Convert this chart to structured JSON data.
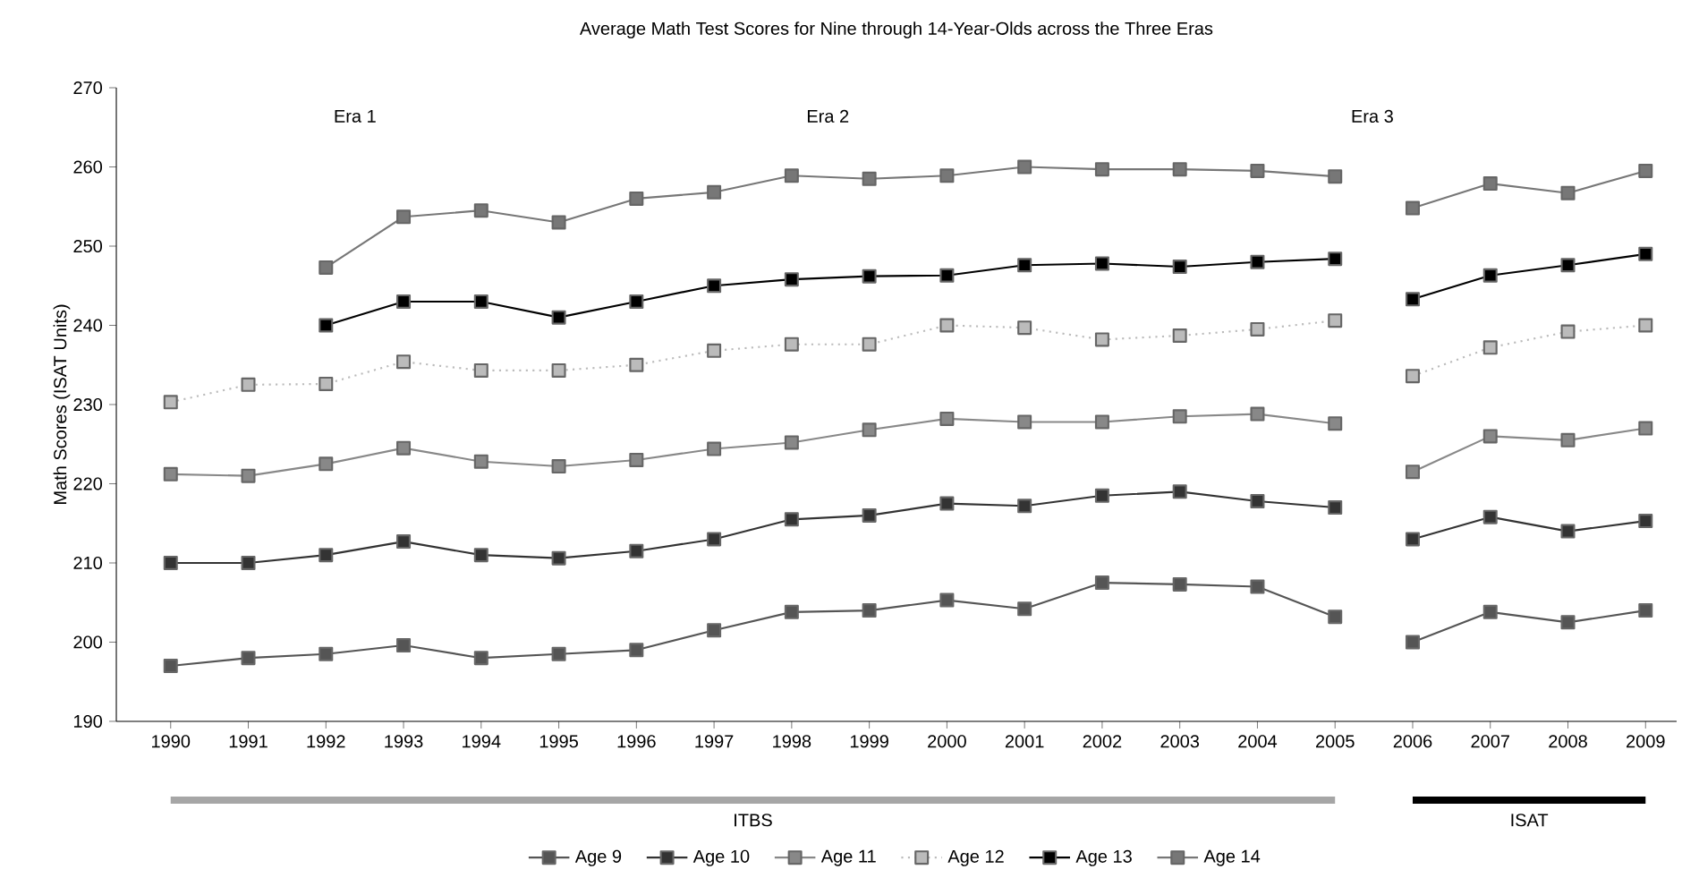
{
  "chart_data": {
    "type": "line",
    "title": "Average Math Test Scores for Nine through 14-Year-Olds across the Three Eras",
    "ylabel": "Math Scores (ISAT Units)",
    "xlim": [
      1989.3,
      2009.4
    ],
    "xticks": [
      1990,
      1991,
      1992,
      1993,
      1994,
      1995,
      1996,
      1997,
      1998,
      1999,
      2000,
      2001,
      2002,
      2003,
      2004,
      2005,
      2006,
      2007,
      2008,
      2009
    ],
    "ylim": [
      190,
      270
    ],
    "yticks": [
      190,
      200,
      210,
      220,
      230,
      240,
      250,
      260,
      270
    ],
    "marker": "square",
    "legend": "bottom",
    "series": [
      {
        "name": "Age 9",
        "color": "#555555",
        "x": [
          1990,
          1991,
          1992,
          1993,
          1994,
          1995,
          1996,
          1997,
          1998,
          1999,
          2000,
          2001,
          2002,
          2003,
          2004,
          2005
        ],
        "values": [
          197,
          198,
          198.5,
          199.6,
          198,
          198.5,
          199,
          201.5,
          203.8,
          204,
          205.3,
          204.2,
          207.5,
          207.3,
          207,
          203.2
        ]
      },
      {
        "name": "Age 10",
        "color": "#333333",
        "x": [
          1990,
          1991,
          1992,
          1993,
          1994,
          1995,
          1996,
          1997,
          1998,
          1999,
          2000,
          2001,
          2002,
          2003,
          2004,
          2005
        ],
        "values": [
          210,
          210,
          211,
          212.7,
          211,
          210.6,
          211.5,
          213,
          215.5,
          216,
          217.5,
          217.2,
          218.5,
          219,
          217.8,
          217
        ]
      },
      {
        "name": "Age 11",
        "color": "#888888",
        "x": [
          1990,
          1991,
          1992,
          1993,
          1994,
          1995,
          1996,
          1997,
          1998,
          1999,
          2000,
          2001,
          2002,
          2003,
          2004,
          2005
        ],
        "values": [
          221.2,
          221,
          222.5,
          224.5,
          222.8,
          222.2,
          223,
          224.4,
          225.2,
          226.8,
          228.2,
          227.8,
          227.8,
          228.5,
          228.8,
          227.6
        ]
      },
      {
        "name": "Age 12",
        "color": "#bbbbbb",
        "line_style": "dotted",
        "x": [
          1990,
          1991,
          1992,
          1993,
          1994,
          1995,
          1996,
          1997,
          1998,
          1999,
          2000,
          2001,
          2002,
          2003,
          2004,
          2005
        ],
        "values": [
          230.3,
          232.5,
          232.6,
          235.4,
          234.3,
          234.3,
          235,
          236.8,
          237.6,
          237.6,
          240,
          239.7,
          238.2,
          238.7,
          239.5,
          240.6
        ]
      },
      {
        "name": "Age 13",
        "color": "#000000",
        "x": [
          1992,
          1993,
          1994,
          1995,
          1996,
          1997,
          1998,
          1999,
          2000,
          2001,
          2002,
          2003,
          2004,
          2005
        ],
        "values": [
          240,
          243,
          243,
          241,
          243,
          245,
          245.8,
          246.2,
          246.3,
          247.6,
          247.8,
          247.4,
          248,
          248.4
        ]
      },
      {
        "name": "Age 14",
        "color": "#777777",
        "x": [
          1992,
          1993,
          1994,
          1995,
          1996,
          1997,
          1998,
          1999,
          2000,
          2001,
          2002,
          2003,
          2004,
          2005
        ],
        "values": [
          247.3,
          253.7,
          254.5,
          253,
          256,
          256.8,
          258.9,
          258.5,
          258.9,
          260,
          259.7,
          259.7,
          259.5,
          258.8
        ]
      },
      {
        "color": "#555555",
        "x": [
          2006,
          2007,
          2008,
          2009
        ],
        "values": [
          200,
          203.8,
          202.5,
          204
        ]
      },
      {
        "color": "#333333",
        "x": [
          2006,
          2007,
          2008,
          2009
        ],
        "values": [
          213,
          215.8,
          214,
          215.3
        ]
      },
      {
        "color": "#888888",
        "x": [
          2006,
          2007,
          2008,
          2009
        ],
        "values": [
          221.5,
          226,
          225.5,
          227
        ]
      },
      {
        "color": "#bbbbbb",
        "line_style": "dotted",
        "x": [
          2006,
          2007,
          2008,
          2009
        ],
        "values": [
          233.6,
          237.2,
          239.2,
          240
        ]
      },
      {
        "color": "#000000",
        "x": [
          2006,
          2007,
          2008,
          2009
        ],
        "values": [
          243.3,
          246.3,
          247.6,
          249
        ]
      },
      {
        "color": "#777777",
        "x": [
          2006,
          2007,
          2008,
          2009
        ],
        "values": [
          254.8,
          257.9,
          256.7,
          259.5
        ]
      }
    ],
    "annotations": [
      "Era 1",
      "Era 2",
      "Era 3",
      "ITBS",
      "ISAT"
    ]
  }
}
